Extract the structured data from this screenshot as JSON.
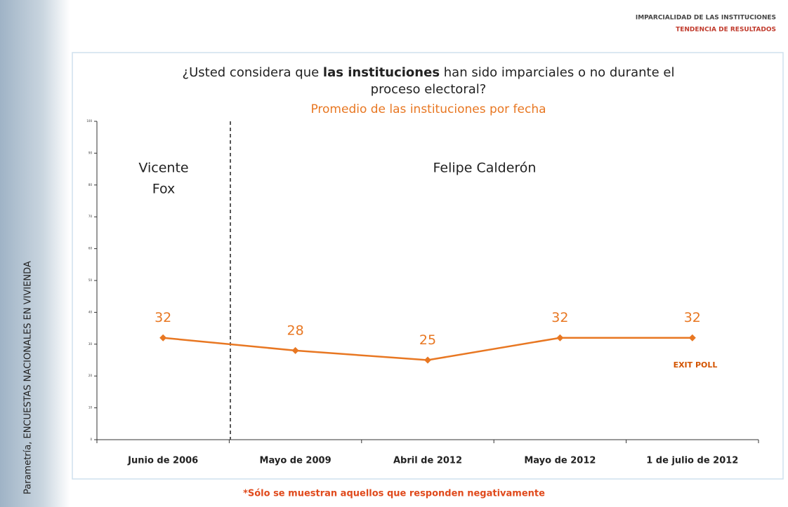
{
  "header": {
    "title": "IMPARCIALIDAD DE LAS INSTITUCIONES",
    "subtitle": "TENDENCIA DE RESULTADOS"
  },
  "side_text": "Parametría, ENCUESTAS NACIONALES EN VIVIENDA",
  "chart_data": {
    "type": "line",
    "title": [
      "¿Usted considera que ",
      "las instituciones",
      " han sido imparciales o no durante el proceso electoral?"
    ],
    "subtitle": "Promedio de las instituciones por fecha",
    "categories": [
      "Junio de 2006",
      "Mayo de 2009",
      "Abril de 2012",
      "Mayo de 2012",
      "1 de julio de 2012"
    ],
    "values": [
      32,
      28,
      25,
      32,
      32
    ],
    "color": "#e87722",
    "ylim": [
      0,
      100
    ],
    "yticks": [
      0,
      10,
      20,
      30,
      40,
      50,
      60,
      70,
      80,
      90,
      100
    ],
    "annotations": {
      "period_1": [
        "Vicente",
        "Fox"
      ],
      "period_2": "Felipe Calderón",
      "exit_poll": "EXIT POLL"
    },
    "footnote": "*Sólo se muestran aquellos que responden negativamente"
  }
}
